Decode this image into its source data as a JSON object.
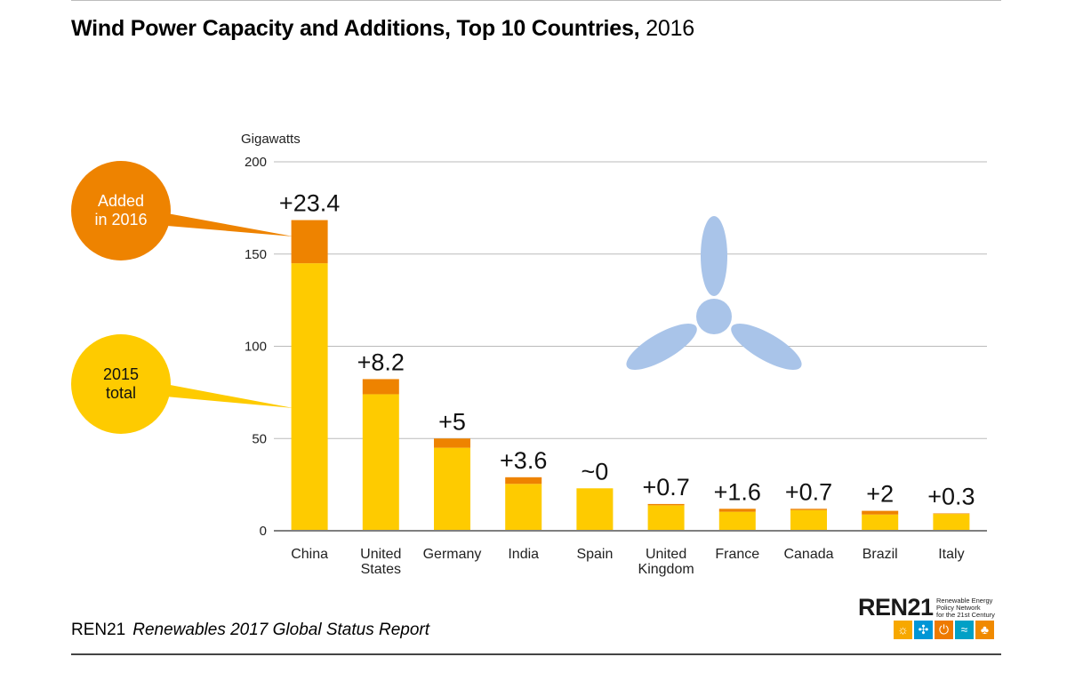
{
  "title": {
    "bold": "Wind Power Capacity and Additions, Top 10 Countries,",
    "year": "2016"
  },
  "legend": {
    "added": {
      "line1": "Added",
      "line2": "in 2016",
      "color": "#ee8300"
    },
    "base": {
      "line1": "2015",
      "line2": "total",
      "color": "#fecb00"
    }
  },
  "fan_icon": "wind-turbine-icon",
  "chart_data": {
    "type": "bar",
    "stacked": true,
    "ylabel": "Gigawatts",
    "ylim": [
      0,
      200
    ],
    "yticks": [
      0,
      50,
      100,
      150,
      200
    ],
    "grid": true,
    "categories": [
      [
        "China"
      ],
      [
        "United",
        "States"
      ],
      [
        "Germany"
      ],
      [
        "India"
      ],
      [
        "Spain"
      ],
      [
        "United",
        "Kingdom"
      ],
      [
        "France"
      ],
      [
        "Canada"
      ],
      [
        "Brazil"
      ],
      [
        "Italy"
      ]
    ],
    "series": [
      {
        "name": "2015 total",
        "color": "#fecb00",
        "values": [
          145,
          74,
          45,
          25.4,
          23,
          13.8,
          10.3,
          11.2,
          8.8,
          9.1
        ]
      },
      {
        "name": "Added in 2016",
        "color": "#ee8300",
        "values": [
          23.4,
          8.2,
          5,
          3.6,
          0,
          0.7,
          1.6,
          0.7,
          2,
          0.3
        ]
      }
    ],
    "data_labels": [
      "+23.4",
      "+8.2",
      "+5",
      "+3.6",
      "~0",
      "+0.7",
      "+1.6",
      "+0.7",
      "+2",
      "+0.3"
    ]
  },
  "footer": {
    "org": "REN21",
    "report": "Renewables 2017 Global Status Report"
  },
  "logo": {
    "word": "REN21",
    "tagline": [
      "Renewable Energy",
      "Policy Network",
      "for the 21st Century"
    ],
    "tiles": [
      {
        "name": "sun-icon",
        "glyph": "☼",
        "color": "#f7a800"
      },
      {
        "name": "wind-icon",
        "glyph": "✣",
        "color": "#0096d6"
      },
      {
        "name": "power-icon",
        "glyph": "⏻",
        "color": "#ee7a00"
      },
      {
        "name": "water-icon",
        "glyph": "≈",
        "color": "#00a0c6"
      },
      {
        "name": "leaf-icon",
        "glyph": "♣",
        "color": "#f08a00"
      }
    ]
  }
}
